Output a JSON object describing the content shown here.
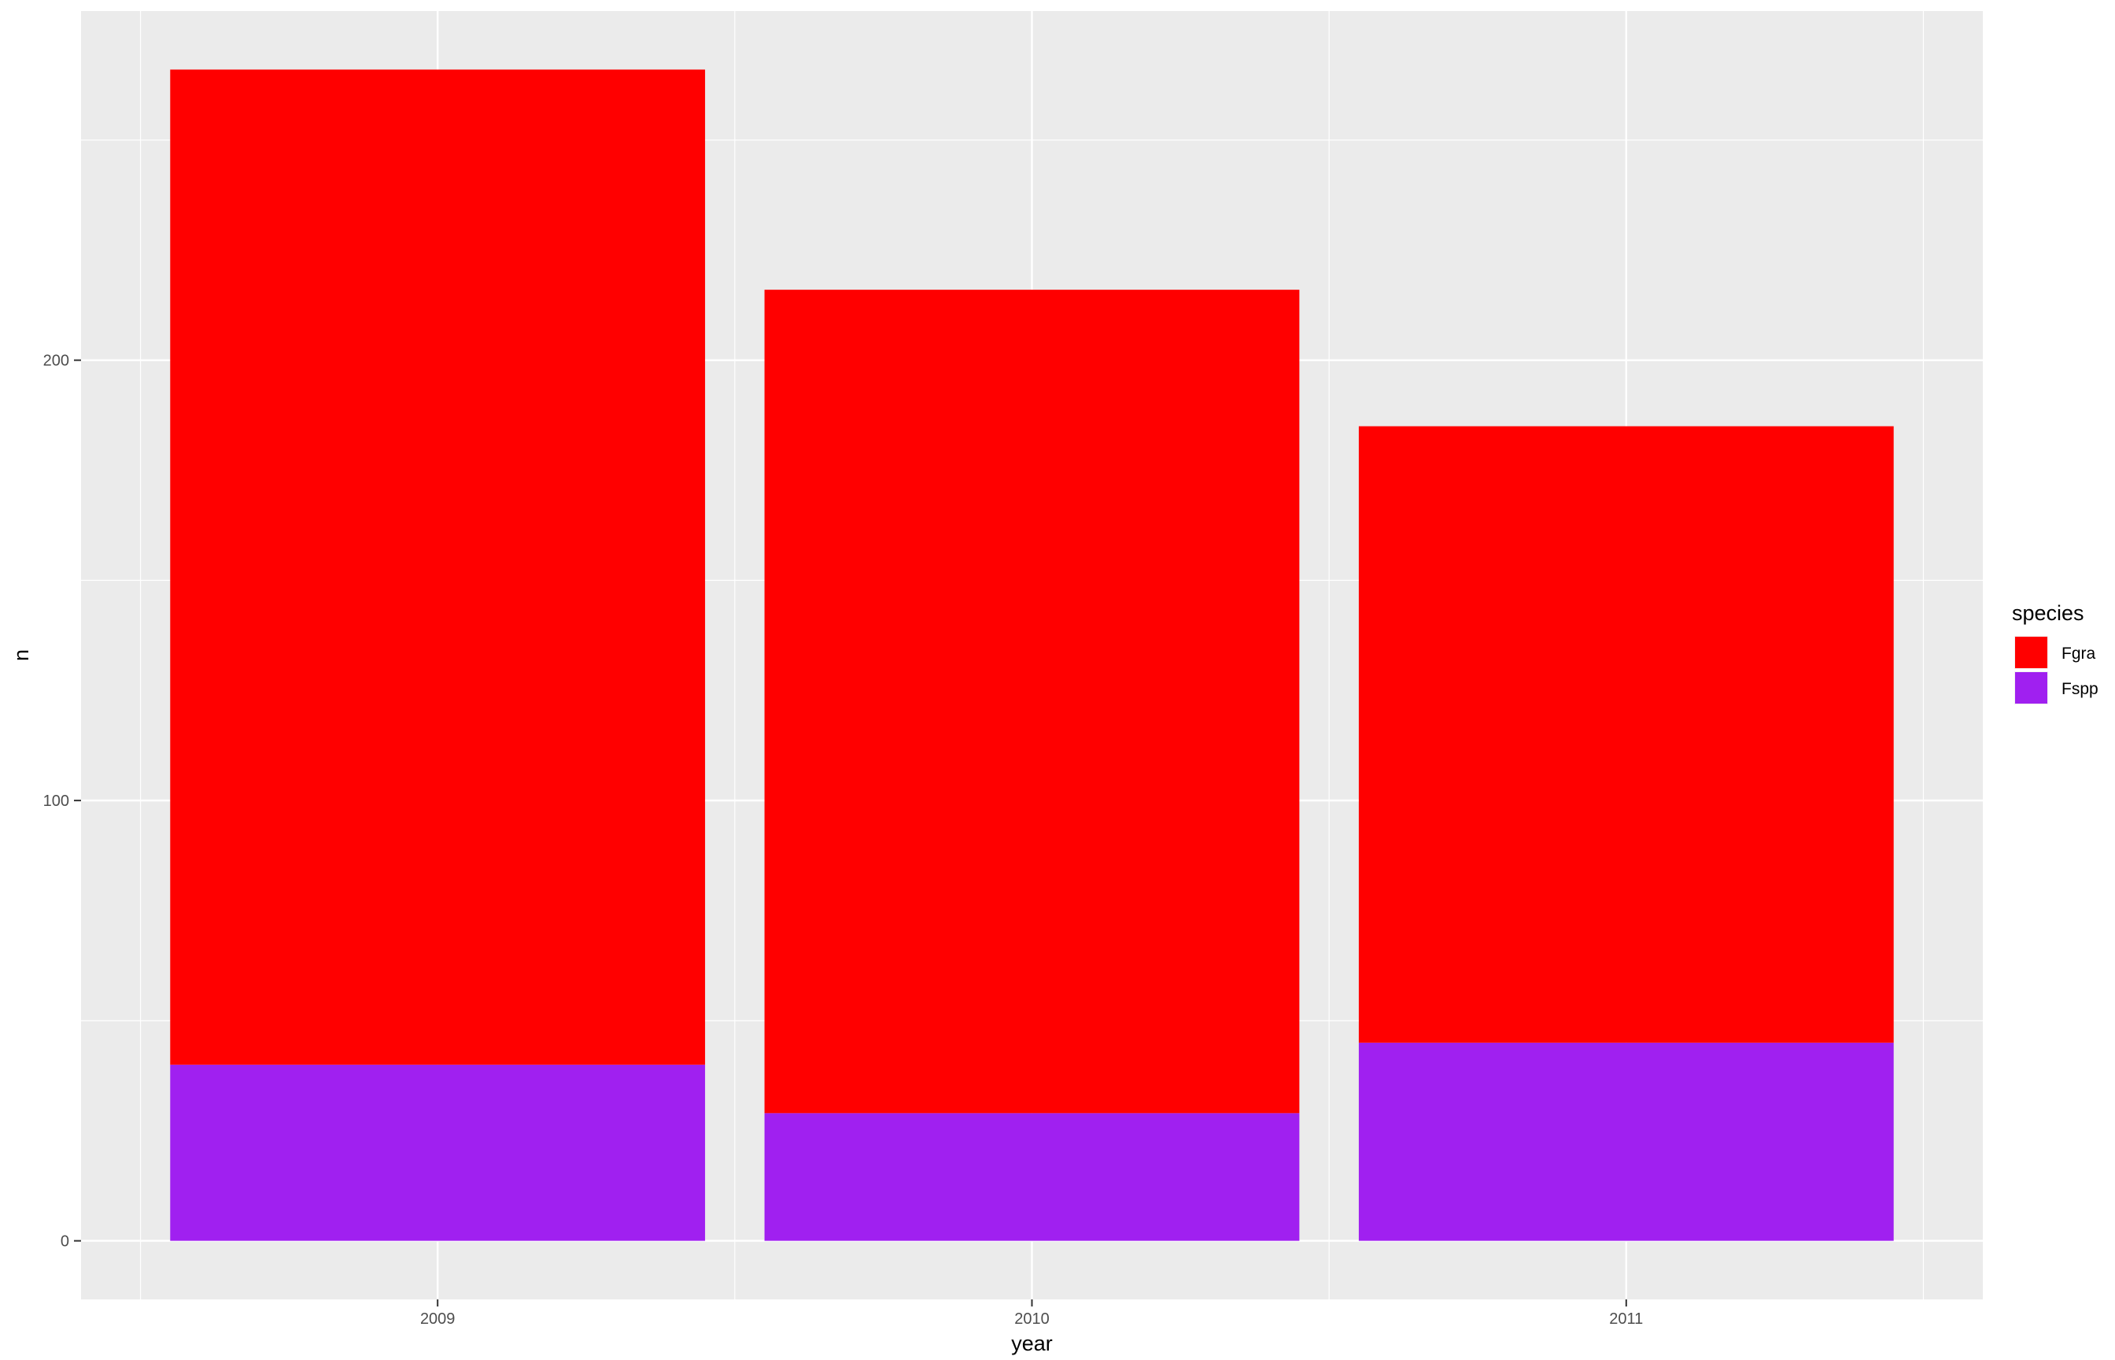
{
  "chart_data": {
    "type": "bar",
    "stacked": true,
    "categories": [
      "2009",
      "2010",
      "2011"
    ],
    "series": [
      {
        "name": "Fspp",
        "values": [
          40,
          29,
          45
        ],
        "color": "#A020F0"
      },
      {
        "name": "Fgra",
        "values": [
          226,
          187,
          140
        ],
        "color": "#FF0000"
      }
    ],
    "xlabel": "year",
    "ylabel": "n",
    "ylim": [
      -13.3,
      279.3
    ],
    "yticks": [
      0,
      100,
      200
    ],
    "y_minor": [
      50,
      150,
      250
    ],
    "grid": true,
    "legend": {
      "title": "species",
      "position": "right",
      "entries": [
        {
          "label": "Fgra",
          "color": "#FF0000"
        },
        {
          "label": "Fspp",
          "color": "#A020F0"
        }
      ]
    },
    "panel_background": "#EBEBEB",
    "grid_color": "#FFFFFF"
  }
}
